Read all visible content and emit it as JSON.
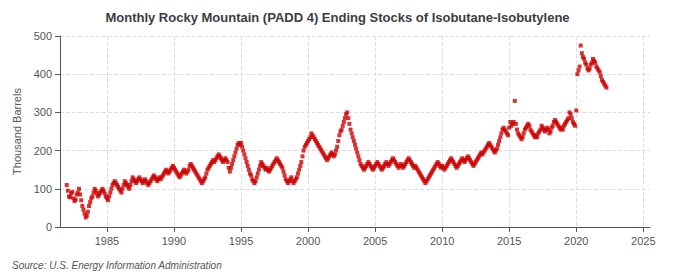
{
  "chart_data": {
    "type": "scatter",
    "title": "Monthly Rocky Mountain (PADD 4) Ending Stocks of Isobutane-Isobutylene",
    "ylabel": "Thousand Barrels",
    "annotation": "Source: U.S. Energy Information Administration",
    "color": "#cc0000",
    "marker": "square",
    "grid": true,
    "xlim": [
      1981.5,
      2025.5
    ],
    "ylim": [
      0,
      500
    ],
    "xticks": [
      1985,
      1990,
      1995,
      2000,
      2005,
      2010,
      2015,
      2020,
      2025
    ],
    "yticks": [
      0,
      100,
      200,
      300,
      400,
      500
    ],
    "x": [
      1982.0,
      1982.083,
      1982.167,
      1982.25,
      1982.333,
      1982.417,
      1982.5,
      1982.583,
      1982.667,
      1982.75,
      1982.833,
      1982.917,
      1983.0,
      1983.083,
      1983.167,
      1983.25,
      1983.333,
      1983.417,
      1983.5,
      1983.583,
      1983.667,
      1983.75,
      1983.833,
      1983.917,
      1984.0,
      1984.083,
      1984.167,
      1984.25,
      1984.333,
      1984.417,
      1984.5,
      1984.583,
      1984.667,
      1984.75,
      1984.833,
      1984.917,
      1985.0,
      1985.083,
      1985.167,
      1985.25,
      1985.333,
      1985.417,
      1985.5,
      1985.583,
      1985.667,
      1985.75,
      1985.833,
      1985.917,
      1986.0,
      1986.083,
      1986.167,
      1986.25,
      1986.333,
      1986.417,
      1986.5,
      1986.583,
      1986.667,
      1986.75,
      1986.833,
      1986.917,
      1987.0,
      1987.083,
      1987.167,
      1987.25,
      1987.333,
      1987.417,
      1987.5,
      1987.583,
      1987.667,
      1987.75,
      1987.833,
      1987.917,
      1988.0,
      1988.083,
      1988.167,
      1988.25,
      1988.333,
      1988.417,
      1988.5,
      1988.583,
      1988.667,
      1988.75,
      1988.833,
      1988.917,
      1989.0,
      1989.083,
      1989.167,
      1989.25,
      1989.333,
      1989.417,
      1989.5,
      1989.583,
      1989.667,
      1989.75,
      1989.833,
      1989.917,
      1990.0,
      1990.083,
      1990.167,
      1990.25,
      1990.333,
      1990.417,
      1990.5,
      1990.583,
      1990.667,
      1990.75,
      1990.833,
      1990.917,
      1991.0,
      1991.083,
      1991.167,
      1991.25,
      1991.333,
      1991.417,
      1991.5,
      1991.583,
      1991.667,
      1991.75,
      1991.833,
      1991.917,
      1992.0,
      1992.083,
      1992.167,
      1992.25,
      1992.333,
      1992.417,
      1992.5,
      1992.583,
      1992.667,
      1992.75,
      1992.833,
      1992.917,
      1993.0,
      1993.083,
      1993.167,
      1993.25,
      1993.333,
      1993.417,
      1993.5,
      1993.583,
      1993.667,
      1993.75,
      1993.833,
      1993.917,
      1994.0,
      1994.083,
      1994.167,
      1994.25,
      1994.333,
      1994.417,
      1994.5,
      1994.583,
      1994.667,
      1994.75,
      1994.833,
      1994.917,
      1995.0,
      1995.083,
      1995.167,
      1995.25,
      1995.333,
      1995.417,
      1995.5,
      1995.583,
      1995.667,
      1995.75,
      1995.833,
      1995.917,
      1996.0,
      1996.083,
      1996.167,
      1996.25,
      1996.333,
      1996.417,
      1996.5,
      1996.583,
      1996.667,
      1996.75,
      1996.833,
      1996.917,
      1997.0,
      1997.083,
      1997.167,
      1997.25,
      1997.333,
      1997.417,
      1997.5,
      1997.583,
      1997.667,
      1997.75,
      1997.833,
      1997.917,
      1998.0,
      1998.083,
      1998.167,
      1998.25,
      1998.333,
      1998.417,
      1998.5,
      1998.583,
      1998.667,
      1998.75,
      1998.833,
      1998.917,
      1999.0,
      1999.083,
      1999.167,
      1999.25,
      1999.333,
      1999.417,
      1999.5,
      1999.583,
      1999.667,
      1999.75,
      1999.833,
      1999.917,
      2000.0,
      2000.083,
      2000.167,
      2000.25,
      2000.333,
      2000.417,
      2000.5,
      2000.583,
      2000.667,
      2000.75,
      2000.833,
      2000.917,
      2001.0,
      2001.083,
      2001.167,
      2001.25,
      2001.333,
      2001.417,
      2001.5,
      2001.583,
      2001.667,
      2001.75,
      2001.833,
      2001.917,
      2002.0,
      2002.083,
      2002.167,
      2002.25,
      2002.333,
      2002.417,
      2002.5,
      2002.583,
      2002.667,
      2002.75,
      2002.833,
      2002.917,
      2003.0,
      2003.083,
      2003.167,
      2003.25,
      2003.333,
      2003.417,
      2003.5,
      2003.583,
      2003.667,
      2003.75,
      2003.833,
      2003.917,
      2004.0,
      2004.083,
      2004.167,
      2004.25,
      2004.333,
      2004.417,
      2004.5,
      2004.583,
      2004.667,
      2004.75,
      2004.833,
      2004.917,
      2005.0,
      2005.083,
      2005.167,
      2005.25,
      2005.333,
      2005.417,
      2005.5,
      2005.583,
      2005.667,
      2005.75,
      2005.833,
      2005.917,
      2006.0,
      2006.083,
      2006.167,
      2006.25,
      2006.333,
      2006.417,
      2006.5,
      2006.583,
      2006.667,
      2006.75,
      2006.833,
      2006.917,
      2007.0,
      2007.083,
      2007.167,
      2007.25,
      2007.333,
      2007.417,
      2007.5,
      2007.583,
      2007.667,
      2007.75,
      2007.833,
      2007.917,
      2008.0,
      2008.083,
      2008.167,
      2008.25,
      2008.333,
      2008.417,
      2008.5,
      2008.583,
      2008.667,
      2008.75,
      2008.833,
      2008.917,
      2009.0,
      2009.083,
      2009.167,
      2009.25,
      2009.333,
      2009.417,
      2009.5,
      2009.583,
      2009.667,
      2009.75,
      2009.833,
      2009.917,
      2010.0,
      2010.083,
      2010.167,
      2010.25,
      2010.333,
      2010.417,
      2010.5,
      2010.583,
      2010.667,
      2010.75,
      2010.833,
      2010.917,
      2011.0,
      2011.083,
      2011.167,
      2011.25,
      2011.333,
      2011.417,
      2011.5,
      2011.583,
      2011.667,
      2011.75,
      2011.833,
      2011.917,
      2012.0,
      2012.083,
      2012.167,
      2012.25,
      2012.333,
      2012.417,
      2012.5,
      2012.583,
      2012.667,
      2012.75,
      2012.833,
      2012.917,
      2013.0,
      2013.083,
      2013.167,
      2013.25,
      2013.333,
      2013.417,
      2013.5,
      2013.583,
      2013.667,
      2013.75,
      2013.833,
      2013.917,
      2014.0,
      2014.083,
      2014.167,
      2014.25,
      2014.333,
      2014.417,
      2014.5,
      2014.583,
      2014.667,
      2014.75,
      2014.833,
      2014.917,
      2015.0,
      2015.083,
      2015.167,
      2015.25,
      2015.333,
      2015.417,
      2015.5,
      2015.583,
      2015.667,
      2015.75,
      2015.833,
      2015.917,
      2016.0,
      2016.083,
      2016.167,
      2016.25,
      2016.333,
      2016.417,
      2016.5,
      2016.583,
      2016.667,
      2016.75,
      2016.833,
      2016.917,
      2017.0,
      2017.083,
      2017.167,
      2017.25,
      2017.333,
      2017.417,
      2017.5,
      2017.583,
      2017.667,
      2017.75,
      2017.833,
      2017.917,
      2018.0,
      2018.083,
      2018.167,
      2018.25,
      2018.333,
      2018.417,
      2018.5,
      2018.583,
      2018.667,
      2018.75,
      2018.833,
      2018.917,
      2019.0,
      2019.083,
      2019.167,
      2019.25,
      2019.333,
      2019.417,
      2019.5,
      2019.583,
      2019.667,
      2019.75,
      2019.833,
      2019.917,
      2020.0,
      2020.083,
      2020.167,
      2020.25,
      2020.333,
      2020.417,
      2020.5,
      2020.583,
      2020.667,
      2020.75,
      2020.833,
      2020.917,
      2021.0,
      2021.083,
      2021.167,
      2021.25,
      2021.333,
      2021.417,
      2021.5,
      2021.583,
      2021.667,
      2021.75,
      2021.833,
      2021.917,
      2022.0,
      2022.083,
      2022.167,
      2022.25
    ],
    "values": [
      110,
      95,
      80,
      78,
      88,
      92,
      75,
      68,
      72,
      85,
      90,
      100,
      85,
      70,
      55,
      45,
      35,
      25,
      30,
      40,
      55,
      65,
      75,
      80,
      90,
      100,
      95,
      88,
      80,
      85,
      90,
      95,
      100,
      95,
      88,
      80,
      75,
      70,
      80,
      90,
      100,
      110,
      115,
      120,
      115,
      110,
      105,
      100,
      95,
      90,
      100,
      110,
      120,
      115,
      110,
      105,
      100,
      110,
      120,
      130,
      125,
      120,
      115,
      120,
      125,
      130,
      125,
      120,
      115,
      120,
      125,
      120,
      115,
      110,
      115,
      120,
      125,
      130,
      135,
      130,
      125,
      120,
      125,
      130,
      125,
      130,
      135,
      140,
      145,
      150,
      145,
      140,
      145,
      150,
      155,
      160,
      155,
      150,
      145,
      140,
      135,
      130,
      135,
      140,
      145,
      150,
      145,
      140,
      145,
      150,
      160,
      165,
      160,
      155,
      150,
      145,
      140,
      135,
      130,
      125,
      120,
      115,
      120,
      125,
      130,
      140,
      150,
      155,
      160,
      165,
      170,
      175,
      170,
      175,
      180,
      185,
      190,
      185,
      180,
      175,
      170,
      175,
      180,
      175,
      170,
      155,
      145,
      155,
      165,
      175,
      185,
      195,
      205,
      215,
      220,
      215,
      220,
      210,
      200,
      190,
      180,
      170,
      160,
      150,
      140,
      135,
      125,
      120,
      115,
      120,
      130,
      140,
      150,
      160,
      170,
      165,
      160,
      155,
      150,
      155,
      150,
      145,
      150,
      155,
      160,
      165,
      170,
      175,
      180,
      175,
      170,
      165,
      160,
      155,
      145,
      135,
      125,
      120,
      115,
      120,
      125,
      130,
      120,
      115,
      120,
      125,
      130,
      140,
      150,
      160,
      170,
      185,
      200,
      210,
      215,
      220,
      225,
      230,
      235,
      245,
      240,
      235,
      230,
      225,
      220,
      215,
      210,
      205,
      200,
      195,
      190,
      185,
      180,
      175,
      180,
      185,
      190,
      195,
      190,
      185,
      190,
      200,
      210,
      225,
      240,
      250,
      255,
      265,
      275,
      285,
      295,
      300,
      285,
      270,
      255,
      245,
      235,
      225,
      215,
      205,
      195,
      185,
      175,
      165,
      160,
      155,
      150,
      155,
      160,
      165,
      170,
      165,
      160,
      155,
      150,
      155,
      160,
      165,
      170,
      165,
      160,
      155,
      150,
      155,
      160,
      165,
      170,
      165,
      160,
      165,
      170,
      175,
      180,
      175,
      170,
      165,
      160,
      155,
      160,
      165,
      160,
      155,
      160,
      165,
      170,
      175,
      180,
      175,
      170,
      165,
      160,
      155,
      160,
      155,
      150,
      145,
      140,
      135,
      130,
      125,
      120,
      115,
      120,
      125,
      130,
      135,
      140,
      145,
      150,
      155,
      160,
      165,
      170,
      165,
      160,
      155,
      160,
      155,
      150,
      155,
      160,
      165,
      170,
      175,
      180,
      175,
      170,
      165,
      160,
      155,
      160,
      165,
      170,
      175,
      180,
      175,
      170,
      175,
      180,
      185,
      180,
      175,
      170,
      165,
      160,
      165,
      170,
      175,
      180,
      185,
      190,
      195,
      190,
      195,
      200,
      205,
      210,
      215,
      220,
      215,
      210,
      205,
      200,
      195,
      200,
      205,
      215,
      225,
      235,
      245,
      255,
      260,
      255,
      250,
      245,
      240,
      260,
      275,
      265,
      270,
      275,
      330,
      270,
      255,
      245,
      240,
      235,
      230,
      235,
      245,
      255,
      260,
      265,
      270,
      265,
      255,
      250,
      245,
      240,
      235,
      240,
      235,
      245,
      250,
      255,
      265,
      260,
      255,
      250,
      255,
      260,
      255,
      245,
      250,
      260,
      265,
      275,
      280,
      275,
      270,
      265,
      260,
      255,
      260,
      255,
      265,
      270,
      275,
      280,
      285,
      300,
      295,
      285,
      275,
      270,
      265,
      305,
      400,
      410,
      420,
      475,
      455,
      445,
      440,
      430,
      425,
      415,
      410,
      415,
      425,
      430,
      440,
      435,
      430,
      420,
      415,
      410,
      405,
      395,
      385,
      380,
      375,
      370,
      365
    ]
  }
}
